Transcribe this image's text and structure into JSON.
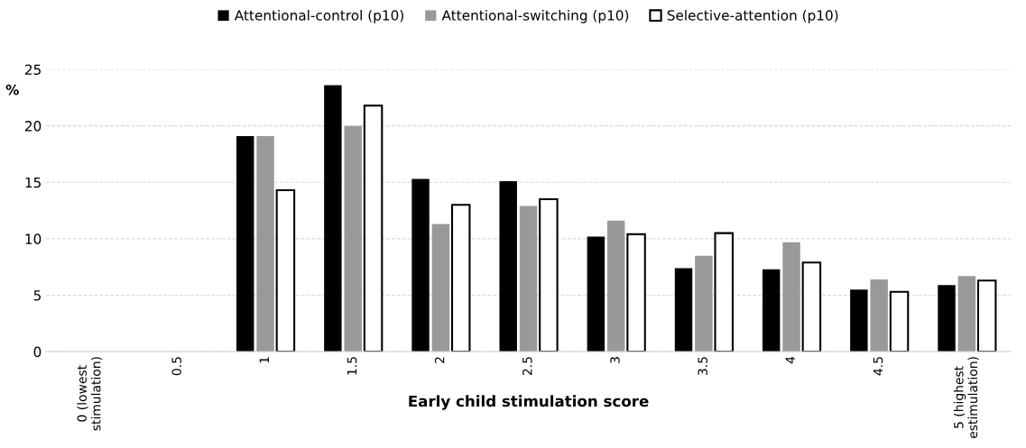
{
  "chart_data": {
    "type": "bar",
    "xlabel": "Early child stimulation score",
    "ylabel": "%",
    "categories": [
      "0 (lowest\nstimulation)",
      "0.5",
      "1",
      "1.5",
      "2",
      "2.5",
      "3",
      "3.5",
      "4",
      "4.5",
      "5 (highest\nestimulation)"
    ],
    "series": [
      {
        "name": "Attentional-control (p10)",
        "color": "#000000",
        "values": [
          null,
          null,
          19.1,
          23.6,
          15.3,
          15.1,
          10.2,
          7.4,
          7.3,
          5.5,
          5.9
        ]
      },
      {
        "name": "Attentional-switching (p10)",
        "color": "#999999",
        "values": [
          null,
          null,
          19.1,
          20.0,
          11.3,
          12.9,
          11.6,
          8.5,
          9.7,
          6.4,
          6.7
        ]
      },
      {
        "name": "Selective-attention (p10)",
        "color": "#ffffff",
        "values": [
          null,
          null,
          14.3,
          21.8,
          13.0,
          13.5,
          10.4,
          10.5,
          7.9,
          5.3,
          6.3
        ]
      }
    ],
    "ylim": [
      0,
      25
    ],
    "yticks": [
      0,
      5,
      10,
      15,
      20,
      25
    ],
    "grid": "y",
    "legend": "top"
  }
}
